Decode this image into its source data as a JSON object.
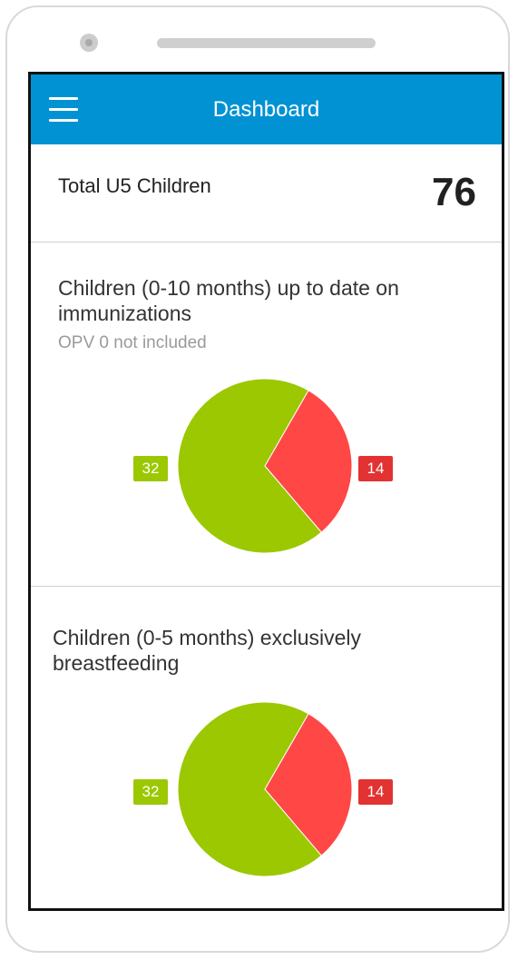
{
  "appbar": {
    "title": "Dashboard",
    "menu_icon": "hamburger-menu-icon",
    "color": "#0092d3"
  },
  "total": {
    "label": "Total U5 Children",
    "value": "76"
  },
  "cards": [
    {
      "title": "Children (0-10 months) up to date on immunizations",
      "subtitle": "OPV 0 not included",
      "chart_data": {
        "type": "pie",
        "slices": [
          {
            "value": 32,
            "color": "#9bc800"
          },
          {
            "value": 14,
            "color": "#ff4745"
          }
        ],
        "labels": [
          "32",
          "14"
        ]
      }
    },
    {
      "title": "Children (0-5 months) exclusively breastfeeding",
      "chart_data": {
        "type": "pie",
        "slices": [
          {
            "value": 32,
            "color": "#9bc800"
          },
          {
            "value": 14,
            "color": "#ff4745"
          }
        ],
        "labels": [
          "32",
          "14"
        ]
      }
    }
  ],
  "colors": {
    "positive": "#9bc800",
    "negative": "#ff4745",
    "negative_badge": "#e23232"
  }
}
